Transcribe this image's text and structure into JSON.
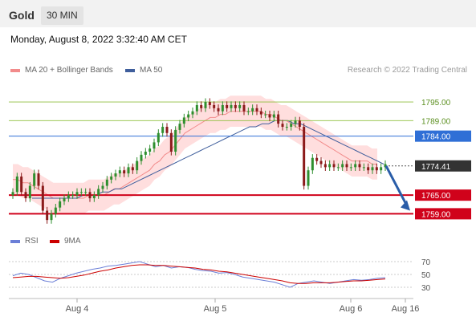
{
  "header": {
    "title": "Gold",
    "timeframe": "30 MIN"
  },
  "datetime": "Monday, August 8, 2022 3:32:40 AM CET",
  "legend": [
    {
      "label": "MA 20 + Bollinger Bands",
      "color": "#f28b8b"
    },
    {
      "label": "MA 50",
      "color": "#3f5e9c"
    }
  ],
  "credit": "Research © 2022 Trading Central",
  "rsi_legend": [
    {
      "label": "RSI",
      "color": "#6b7fd7"
    },
    {
      "label": "9MA",
      "color": "#cc0000"
    }
  ],
  "colors": {
    "resistance": "#8fbf3f",
    "pivot": "#2f6fd6",
    "support": "#d0021b",
    "current": "#333333",
    "bb_fill": "#ffd6d6",
    "candle_up": "#2f8f2f",
    "candle_down": "#8b1a1a",
    "arrow": "#2a5da8"
  },
  "chart_data": [
    {
      "type": "candlestick",
      "title": "Gold",
      "price_levels": [
        {
          "label": "1795.00",
          "value": 1795.0,
          "kind": "resistance"
        },
        {
          "label": "1789.00",
          "value": 1789.0,
          "kind": "resistance"
        },
        {
          "label": "1784.00",
          "value": 1784.0,
          "kind": "pivot"
        },
        {
          "label": "1774.41",
          "value": 1774.41,
          "kind": "current"
        },
        {
          "label": "1765.00",
          "value": 1765.0,
          "kind": "support"
        },
        {
          "label": "1759.00",
          "value": 1759.0,
          "kind": "support"
        }
      ],
      "x_ticks": [
        "Aug 4",
        "Aug 5",
        "Aug 6",
        "Aug 16"
      ],
      "ylim": [
        1756,
        1802
      ],
      "close": [
        1766,
        1771,
        1766,
        1764,
        1768,
        1772,
        1768,
        1760,
        1757,
        1759,
        1761,
        1763,
        1764,
        1765,
        1765,
        1766,
        1766,
        1766,
        1764,
        1765,
        1767,
        1768,
        1770,
        1771,
        1772,
        1773,
        1772,
        1774,
        1773,
        1776,
        1778,
        1779,
        1780,
        1782,
        1785,
        1787,
        1785,
        1779,
        1786,
        1788,
        1790,
        1791,
        1792,
        1794,
        1793,
        1795,
        1794,
        1793,
        1792,
        1794,
        1793,
        1794,
        1793,
        1794,
        1792,
        1792,
        1793,
        1792,
        1791,
        1791,
        1790,
        1791,
        1788,
        1787,
        1787,
        1788,
        1789,
        1787,
        1768,
        1773,
        1777,
        1776,
        1775,
        1774,
        1775,
        1774,
        1774,
        1775,
        1774,
        1774,
        1775,
        1774,
        1774,
        1773,
        1774,
        1773,
        1774,
        1775
      ],
      "ma20": [
        1770,
        1770,
        1769,
        1769,
        1768,
        1767,
        1766,
        1765,
        1764,
        1764,
        1764,
        1764,
        1764,
        1764,
        1764,
        1765,
        1765,
        1765,
        1765,
        1766,
        1767,
        1767,
        1768,
        1769,
        1770,
        1771,
        1772,
        1773,
        1775,
        1776,
        1778,
        1779,
        1781,
        1783,
        1785,
        1786,
        1787,
        1788,
        1789,
        1790,
        1790,
        1791,
        1791,
        1792,
        1792,
        1792,
        1792,
        1792,
        1792,
        1792,
        1791,
        1791,
        1790,
        1789,
        1789,
        1788,
        1787,
        1786,
        1785,
        1784,
        1783,
        1782,
        1781,
        1780,
        1779,
        1778,
        1777,
        1776,
        1776,
        1776,
        1776,
        1775,
        1775
      ],
      "ma50": [
        1764,
        1764,
        1764,
        1764,
        1764,
        1764,
        1764,
        1764,
        1765,
        1765,
        1765,
        1766,
        1766,
        1767,
        1767,
        1768,
        1769,
        1770,
        1771,
        1772,
        1773,
        1774,
        1775,
        1776,
        1777,
        1778,
        1779,
        1780,
        1781,
        1782,
        1783,
        1784,
        1785,
        1786,
        1787,
        1787,
        1788,
        1788,
        1789,
        1789,
        1789,
        1788,
        1788,
        1787,
        1786,
        1785,
        1784,
        1783,
        1782,
        1781,
        1780,
        1779,
        1778,
        1777,
        1776,
        1775
      ]
    },
    {
      "type": "line",
      "title": "RSI",
      "ylim": [
        20,
        80
      ],
      "y_ticks": [
        "70",
        "50",
        "30"
      ],
      "series": [
        {
          "name": "RSI",
          "values": [
            48,
            52,
            50,
            45,
            40,
            38,
            44,
            48,
            52,
            55,
            58,
            60,
            63,
            64,
            66,
            68,
            70,
            66,
            62,
            64,
            60,
            62,
            61,
            58,
            56,
            55,
            52,
            53,
            50,
            46,
            44,
            42,
            40,
            38,
            34,
            30,
            36,
            38,
            40,
            38,
            36,
            38,
            40,
            42,
            41,
            42,
            44,
            45
          ]
        },
        {
          "name": "9MA",
          "values": [
            45,
            46,
            47,
            47,
            46,
            45,
            44,
            45,
            47,
            49,
            52,
            55,
            57,
            60,
            62,
            64,
            65,
            65,
            64,
            64,
            63,
            62,
            61,
            60,
            58,
            57,
            55,
            54,
            52,
            50,
            48,
            46,
            44,
            42,
            40,
            37,
            36,
            36,
            37,
            37,
            37,
            38,
            39,
            40,
            40,
            41,
            42,
            43
          ]
        }
      ]
    }
  ]
}
